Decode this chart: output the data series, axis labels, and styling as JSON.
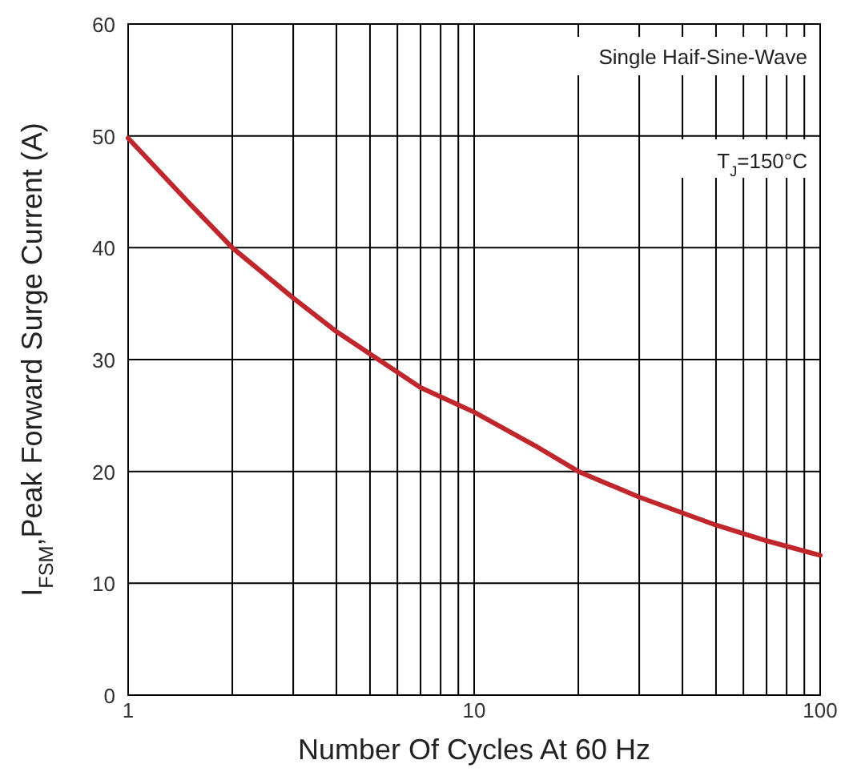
{
  "chart_data": {
    "type": "line",
    "xlabel": "Number Of Cycles At 60 Hz",
    "ylabel": "I$_{FSM}$,Peak Forward Surge Current (A)",
    "log": "x",
    "grid": true,
    "line_style": "solid",
    "xlim": [
      1,
      100
    ],
    "xticks": [
      1,
      {
        "value": 2,
        "label": null
      },
      {
        "value": 3,
        "label": null
      },
      {
        "value": 4,
        "label": null
      },
      {
        "value": 5,
        "label": null
      },
      {
        "value": 6,
        "label": null
      },
      {
        "value": 7,
        "label": null
      },
      {
        "value": 8,
        "label": null
      },
      {
        "value": 9,
        "label": null
      },
      10,
      {
        "value": 20,
        "label": null
      },
      {
        "value": 30,
        "label": null
      },
      {
        "value": 40,
        "label": null
      },
      {
        "value": 50,
        "label": null
      },
      {
        "value": 60,
        "label": null
      },
      {
        "value": 70,
        "label": null
      },
      {
        "value": 80,
        "label": null
      },
      {
        "value": 90,
        "label": null
      },
      100
    ],
    "ylim": [
      0,
      60
    ],
    "yticks": [
      0,
      10,
      20,
      30,
      40,
      50,
      60
    ],
    "series": [
      {
        "color": "#c0272d",
        "x": [
          1,
          1.5,
          2,
          3,
          4,
          5,
          7,
          10,
          15,
          20,
          30,
          50,
          70,
          100
        ],
        "values": [
          49.8,
          44,
          40,
          35.5,
          32.5,
          30.5,
          27.5,
          25.3,
          22.3,
          20,
          17.7,
          15.2,
          13.8,
          12.5
        ]
      }
    ],
    "annotations": [
      "Single Haif-Sine-Wave",
      "T$_{J}$=150°C"
    ]
  }
}
